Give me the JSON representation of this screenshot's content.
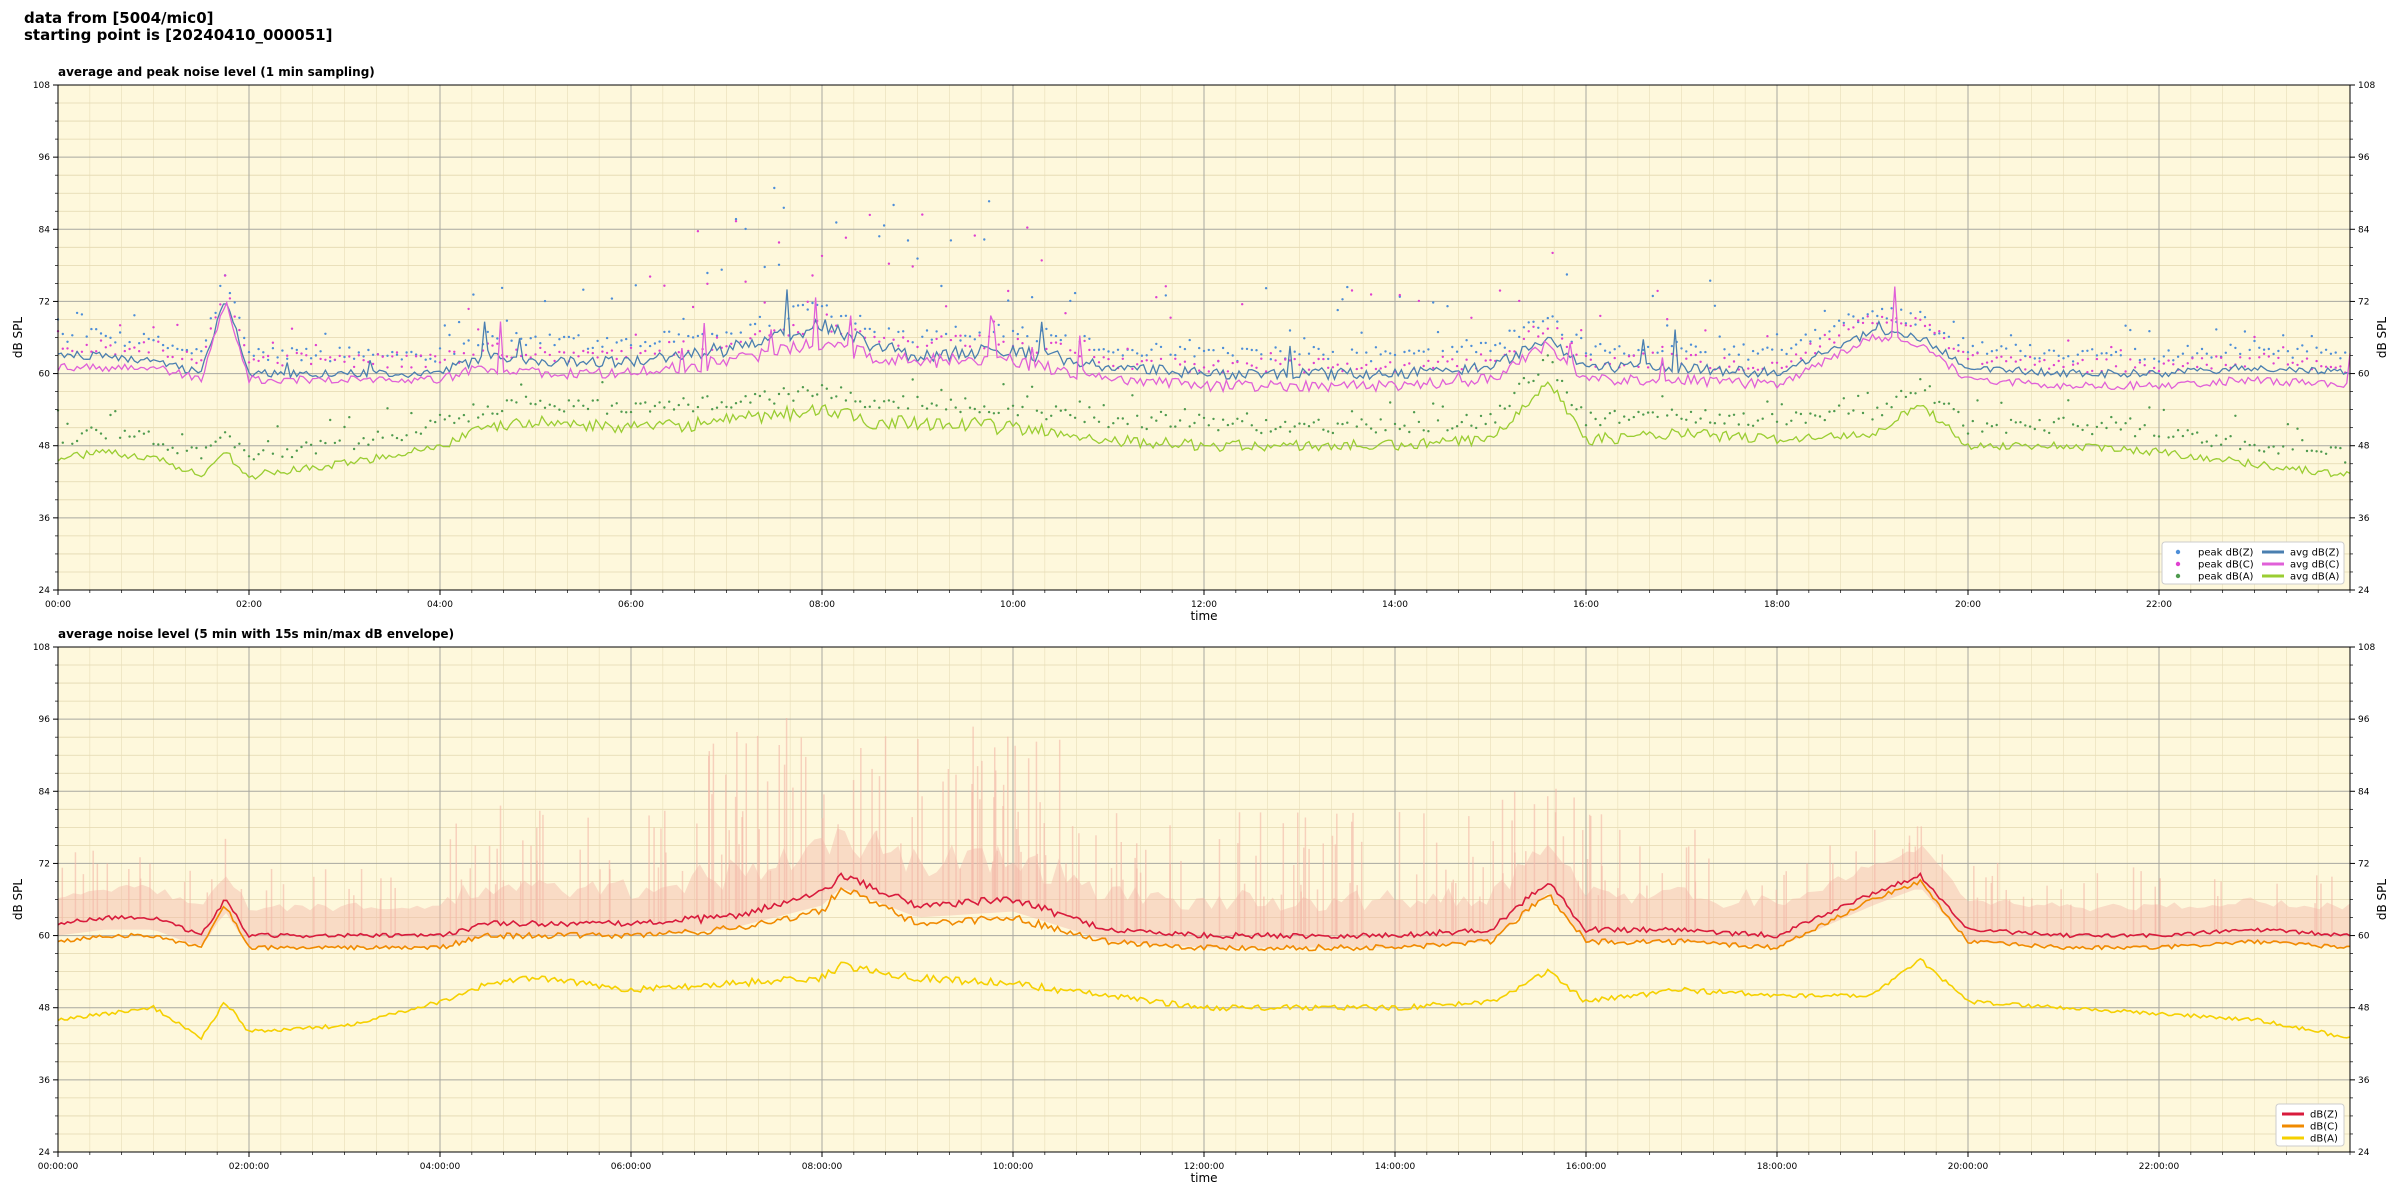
{
  "header": {
    "line1": "data from [5004/mic0]",
    "line2": "starting point is [20240410_000051]"
  },
  "chart_data": [
    {
      "type": "line",
      "title": "average and peak noise level (1 min sampling)",
      "xlabel": "time",
      "ylabel": "dB SPL",
      "xlim": [
        "00:00",
        "24:00"
      ],
      "ylim": [
        24,
        108
      ],
      "yticks": [
        24,
        36,
        48,
        60,
        72,
        84,
        96,
        108
      ],
      "xtick_labels": [
        "00:00",
        "02:00",
        "04:00",
        "06:00",
        "08:00",
        "10:00",
        "12:00",
        "14:00",
        "16:00",
        "18:00",
        "20:00",
        "22:00"
      ],
      "background": "#fef8dc",
      "grid": true,
      "legend_position": "lower-right",
      "legend": [
        {
          "label": "peak dB(Z)",
          "kind": "dot",
          "color": "#4d8ed8"
        },
        {
          "label": "peak dB(C)",
          "kind": "dot",
          "color": "#e040d0"
        },
        {
          "label": "peak dB(A)",
          "kind": "dot",
          "color": "#4e9a4e"
        },
        {
          "label": "avg dB(Z)",
          "kind": "line",
          "color": "#4a7fb0"
        },
        {
          "label": "avg dB(C)",
          "kind": "line",
          "color": "#e060d8"
        },
        {
          "label": "avg dB(A)",
          "kind": "line",
          "color": "#9acd32"
        }
      ],
      "series": [
        {
          "name": "avg dB(Z)",
          "color": "#4a7fb0",
          "x_hours": [
            0,
            0.5,
            1,
            1.5,
            1.75,
            2,
            3,
            4,
            4.5,
            5,
            6,
            7,
            8,
            8.5,
            9,
            10,
            11,
            12,
            13,
            14,
            15,
            15.6,
            16,
            17,
            18,
            19,
            19.5,
            20,
            21,
            22,
            23,
            24
          ],
          "values": [
            63,
            63,
            62,
            60,
            73,
            60,
            60,
            60,
            63,
            62,
            62,
            64,
            68,
            65,
            63,
            64,
            61,
            60,
            60,
            60,
            61,
            66,
            61,
            61,
            60,
            67,
            66,
            61,
            60,
            60,
            61,
            60
          ]
        },
        {
          "name": "avg dB(C)",
          "color": "#e060d8",
          "x_hours": [
            0,
            0.5,
            1,
            1.5,
            1.75,
            2,
            3,
            4,
            4.5,
            5,
            6,
            7,
            8,
            8.5,
            9,
            10,
            11,
            12,
            13,
            14,
            15,
            15.6,
            16,
            17,
            18,
            19,
            19.5,
            20,
            21,
            22,
            23,
            24
          ],
          "values": [
            61,
            61,
            61,
            59,
            72,
            59,
            59,
            59,
            61,
            60,
            60,
            62,
            65,
            63,
            62,
            62,
            59,
            58,
            58,
            58,
            59,
            65,
            59,
            59,
            58,
            66,
            65,
            59,
            58,
            58,
            59,
            58
          ]
        },
        {
          "name": "avg dB(A)",
          "color": "#9acd32",
          "x_hours": [
            0,
            0.5,
            1,
            1.5,
            1.75,
            2,
            3,
            4,
            4.5,
            5,
            6,
            7,
            8,
            8.5,
            9,
            10,
            11,
            12,
            13,
            14,
            15,
            15.6,
            16,
            17,
            18,
            19,
            19.5,
            20,
            21,
            22,
            23,
            24
          ],
          "values": [
            46,
            47,
            46,
            43,
            47,
            43,
            45,
            48,
            51,
            52,
            51,
            52,
            54,
            52,
            52,
            51,
            49,
            48,
            48,
            48,
            49,
            59,
            49,
            50,
            49,
            50,
            55,
            48,
            48,
            47,
            45,
            43
          ]
        }
      ]
    },
    {
      "type": "line",
      "title": "average noise level (5 min with 15s min/max dB envelope)",
      "xlabel": "time",
      "ylabel": "dB SPL",
      "xlim": [
        "00:00:00",
        "24:00:00"
      ],
      "ylim": [
        24,
        108
      ],
      "yticks": [
        24,
        36,
        48,
        60,
        72,
        84,
        96,
        108
      ],
      "xtick_labels": [
        "00:00:00",
        "02:00:00",
        "04:00:00",
        "06:00:00",
        "08:00:00",
        "10:00:00",
        "12:00:00",
        "14:00:00",
        "16:00:00",
        "18:00:00",
        "20:00:00",
        "22:00:00"
      ],
      "background": "#fef8dc",
      "grid": true,
      "legend_position": "lower-right",
      "legend": [
        {
          "label": "dB(Z)",
          "kind": "line",
          "color": "#d81b3c"
        },
        {
          "label": "dB(C)",
          "kind": "line",
          "color": "#f08a00"
        },
        {
          "label": "dB(A)",
          "kind": "line",
          "color": "#f5d000"
        }
      ],
      "envelope_color": "#f4b8a8",
      "series": [
        {
          "name": "dB(Z)",
          "color": "#d81b3c",
          "x_hours": [
            0,
            0.5,
            1,
            1.5,
            1.75,
            2,
            3,
            4,
            4.5,
            5,
            6,
            7,
            8,
            8.2,
            9,
            10,
            11,
            12,
            13,
            14,
            15,
            15.6,
            16,
            17,
            18,
            19,
            19.5,
            20,
            21,
            22,
            23,
            24
          ],
          "values": [
            62,
            63,
            63,
            60,
            66,
            60,
            60,
            60,
            62,
            62,
            62,
            63,
            67,
            70,
            65,
            66,
            61,
            60,
            60,
            60,
            61,
            69,
            61,
            61,
            60,
            67,
            70,
            61,
            60,
            60,
            61,
            60
          ]
        },
        {
          "name": "dB(C)",
          "color": "#f08a00",
          "x_hours": [
            0,
            0.5,
            1,
            1.5,
            1.75,
            2,
            3,
            4,
            4.5,
            5,
            6,
            7,
            8,
            8.2,
            9,
            10,
            11,
            12,
            13,
            14,
            15,
            15.6,
            16,
            17,
            18,
            19,
            19.5,
            20,
            21,
            22,
            23,
            24
          ],
          "values": [
            59,
            60,
            60,
            58,
            65,
            58,
            58,
            58,
            60,
            60,
            60,
            61,
            64,
            68,
            62,
            63,
            59,
            58,
            58,
            58,
            59,
            67,
            59,
            59,
            58,
            66,
            69,
            59,
            58,
            58,
            59,
            58
          ]
        },
        {
          "name": "dB(A)",
          "color": "#f5d000",
          "x_hours": [
            0,
            0.5,
            1,
            1.5,
            1.75,
            2,
            3,
            4,
            4.5,
            5,
            6,
            7,
            8,
            8.2,
            9,
            10,
            11,
            12,
            13,
            14,
            15,
            15.6,
            16,
            17,
            18,
            19,
            19.5,
            20,
            21,
            22,
            23,
            24
          ],
          "values": [
            46,
            47,
            48,
            43,
            49,
            44,
            45,
            49,
            52,
            53,
            51,
            52,
            53,
            55,
            53,
            52,
            50,
            48,
            48,
            48,
            49,
            54,
            49,
            51,
            50,
            50,
            56,
            49,
            48,
            47,
            46,
            43
          ]
        }
      ]
    }
  ]
}
